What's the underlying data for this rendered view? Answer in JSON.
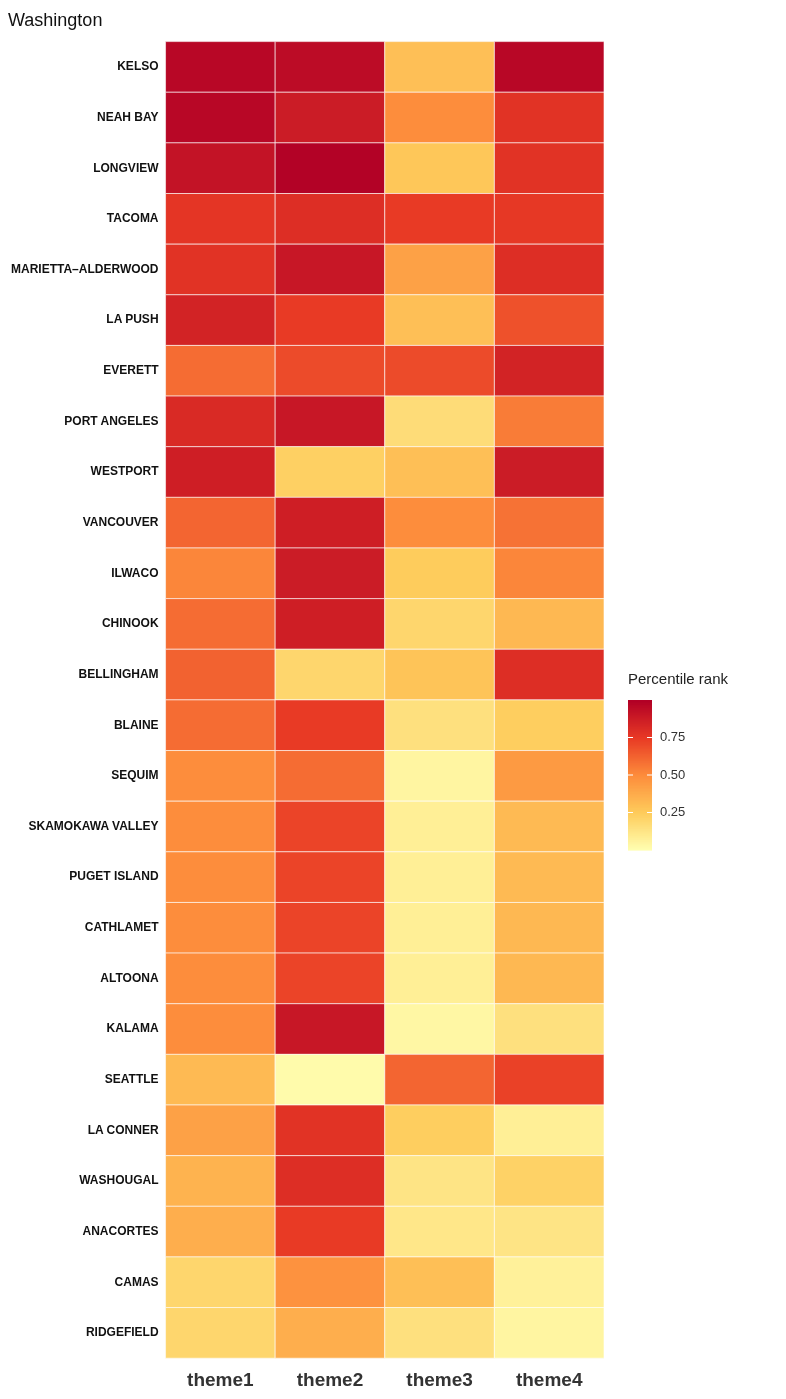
{
  "chart_data": {
    "type": "heatmap",
    "title": "Washington",
    "legend_title": "Percentile rank",
    "categories": [
      "theme1",
      "theme2",
      "theme3",
      "theme4"
    ],
    "y_categories": [
      "KELSO",
      "NEAH BAY",
      "LONGVIEW",
      "TACOMA",
      "MARIETTA–ALDERWOOD",
      "LA PUSH",
      "EVERETT",
      "PORT ANGELES",
      "WESTPORT",
      "VANCOUVER",
      "ILWACO",
      "CHINOOK",
      "BELLINGHAM",
      "BLAINE",
      "SEQUIM",
      "SKAMOKAWA VALLEY",
      "PUGET ISLAND",
      "CATHLAMET",
      "ALTOONA",
      "KALAMA",
      "SEATTLE",
      "LA CONNER",
      "WASHOUGAL",
      "ANACORTES",
      "CAMAS",
      "RIDGEFIELD"
    ],
    "cells": [
      [
        0.97,
        0.95,
        0.3,
        0.97
      ],
      [
        0.97,
        0.88,
        0.5,
        0.78
      ],
      [
        0.92,
        0.99,
        0.27,
        0.78
      ],
      [
        0.77,
        0.8,
        0.75,
        0.76
      ],
      [
        0.78,
        0.9,
        0.42,
        0.8
      ],
      [
        0.85,
        0.75,
        0.3,
        0.68
      ],
      [
        0.6,
        0.7,
        0.7,
        0.85
      ],
      [
        0.82,
        0.9,
        0.17,
        0.55
      ],
      [
        0.87,
        0.23,
        0.3,
        0.88
      ],
      [
        0.62,
        0.87,
        0.5,
        0.58
      ],
      [
        0.52,
        0.88,
        0.25,
        0.52
      ],
      [
        0.6,
        0.87,
        0.2,
        0.33
      ],
      [
        0.63,
        0.2,
        0.28,
        0.8
      ],
      [
        0.6,
        0.75,
        0.15,
        0.24
      ],
      [
        0.5,
        0.6,
        0.05,
        0.45
      ],
      [
        0.5,
        0.72,
        0.08,
        0.32
      ],
      [
        0.5,
        0.72,
        0.08,
        0.32
      ],
      [
        0.5,
        0.72,
        0.08,
        0.33
      ],
      [
        0.5,
        0.72,
        0.08,
        0.33
      ],
      [
        0.5,
        0.9,
        0.04,
        0.15
      ],
      [
        0.32,
        0.02,
        0.62,
        0.73
      ],
      [
        0.42,
        0.78,
        0.24,
        0.08
      ],
      [
        0.35,
        0.8,
        0.13,
        0.22
      ],
      [
        0.37,
        0.75,
        0.12,
        0.13
      ],
      [
        0.2,
        0.48,
        0.3,
        0.07
      ],
      [
        0.2,
        0.37,
        0.15,
        0.05
      ]
    ],
    "clim": [
      0,
      1
    ],
    "cticks": [
      {
        "value": 0.75,
        "label": "0.75"
      },
      {
        "value": 0.5,
        "label": "0.50"
      },
      {
        "value": 0.25,
        "label": "0.25"
      }
    ]
  }
}
